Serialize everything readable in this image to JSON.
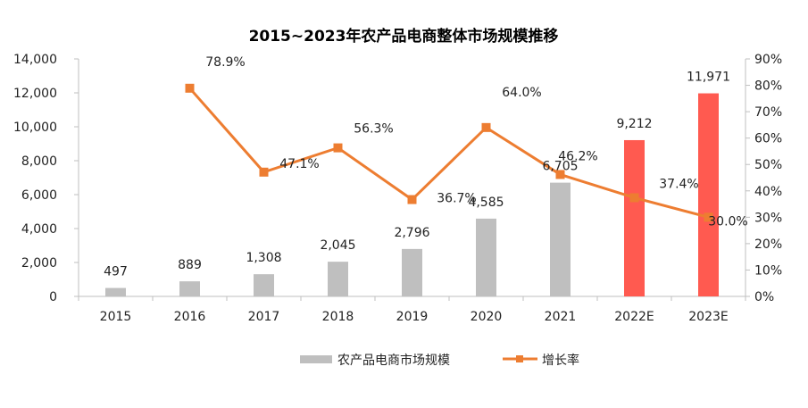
{
  "chart_data": {
    "type": "bar+line",
    "title": "2015~2023年农产品电商整体市场规模推移",
    "categories": [
      "2015",
      "2016",
      "2017",
      "2018",
      "2019",
      "2020",
      "2021",
      "2022E",
      "2023E"
    ],
    "series": [
      {
        "name": "农产品电商市场规模",
        "type": "bar",
        "axis": "left",
        "values": [
          497,
          889,
          1308,
          2045,
          2796,
          4585,
          6705,
          9212,
          11971
        ],
        "labels": [
          "497",
          "889",
          "1,308",
          "2,045",
          "2,796",
          "4,585",
          "6,705",
          "9,212",
          "11,971"
        ],
        "colors": [
          "#bfbfbf",
          "#bfbfbf",
          "#bfbfbf",
          "#bfbfbf",
          "#bfbfbf",
          "#bfbfbf",
          "#bfbfbf",
          "#ff5a50",
          "#ff5a50"
        ]
      },
      {
        "name": "增长率",
        "type": "line",
        "axis": "right",
        "color": "#ed7d31",
        "values": [
          null,
          78.9,
          47.1,
          56.3,
          36.7,
          64.0,
          46.2,
          37.4,
          30.0
        ],
        "labels": [
          "",
          "78.9%",
          "47.1%",
          "56.3%",
          "36.7%",
          "64.0%",
          "46.2%",
          "37.4%",
          "30.0%"
        ]
      }
    ],
    "y_left": {
      "min": 0,
      "max": 14000,
      "step": 2000,
      "ticks": [
        "0",
        "2,000",
        "4,000",
        "6,000",
        "8,000",
        "10,000",
        "12,000",
        "14,000"
      ]
    },
    "y_right": {
      "min": 0,
      "max": 90,
      "step": 10,
      "ticks": [
        "0%",
        "10%",
        "20%",
        "30%",
        "40%",
        "50%",
        "60%",
        "70%",
        "80%",
        "90%"
      ]
    },
    "grid": false,
    "legend": "bottom"
  }
}
